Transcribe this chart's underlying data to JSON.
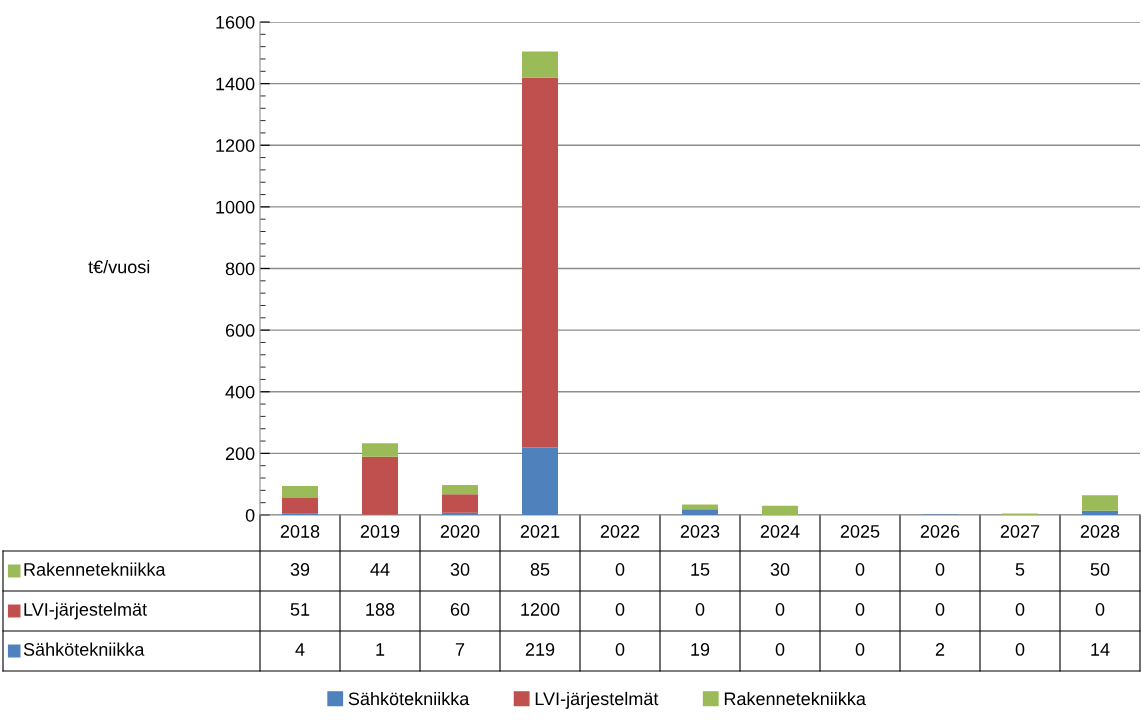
{
  "chart_data": {
    "type": "bar",
    "stacked": true,
    "ylabel": "t€/vuosi",
    "categories": [
      "2018",
      "2019",
      "2020",
      "2021",
      "2022",
      "2023",
      "2024",
      "2025",
      "2026",
      "2027",
      "2028"
    ],
    "series": [
      {
        "name": "Sähkötekniikka",
        "color": "#4f81bd",
        "values": [
          4,
          1,
          7,
          219,
          0,
          19,
          0,
          0,
          2,
          0,
          14
        ]
      },
      {
        "name": "LVI-järjestelmät",
        "color": "#c0504d",
        "values": [
          51,
          188,
          60,
          1200,
          0,
          0,
          0,
          0,
          0,
          0,
          0
        ]
      },
      {
        "name": "Rakennetekniikka",
        "color": "#9bbb59",
        "values": [
          39,
          44,
          30,
          85,
          0,
          15,
          30,
          0,
          0,
          5,
          50
        ]
      }
    ],
    "ylim": [
      0,
      1600
    ],
    "yticks": [
      0,
      200,
      400,
      600,
      800,
      1000,
      1200,
      1400,
      1600
    ],
    "grid": "y",
    "legend": "bottom",
    "data_labels": true
  }
}
